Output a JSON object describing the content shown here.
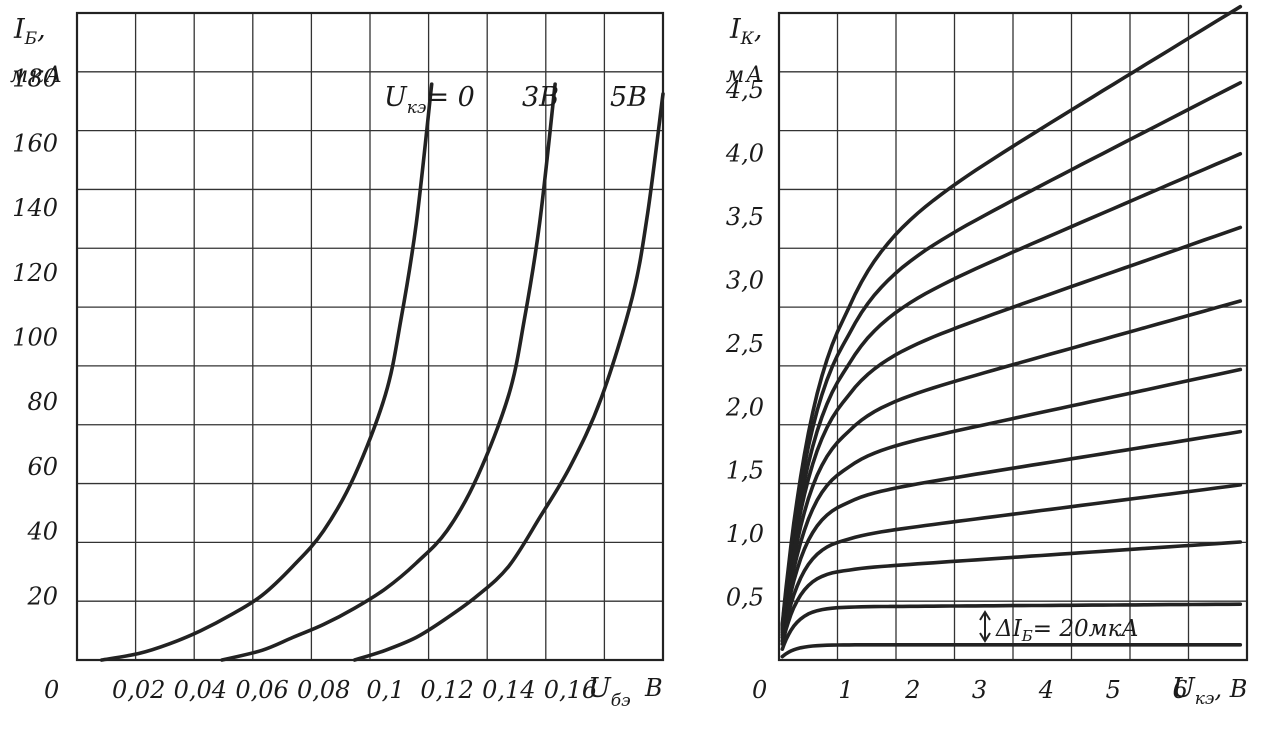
{
  "chart_data": [
    {
      "type": "line",
      "xlabel": "U",
      "xlabel_sub": "бэ",
      "xunit": "В",
      "ylabel": "I",
      "ylabel_sub": "Б",
      "yunit": "мкА",
      "origin_label": "0",
      "xlim": [
        0,
        0.19
      ],
      "ylim": [
        0,
        200
      ],
      "x_ticks": [
        "0,02",
        "0,04",
        "0,06",
        "0,08",
        "0,1",
        "0,12",
        "0,14",
        "0,16"
      ],
      "x_tick_values": [
        0.02,
        0.04,
        0.06,
        0.08,
        0.1,
        0.12,
        0.14,
        0.16
      ],
      "y_ticks": [
        "20",
        "40",
        "60",
        "80",
        "100",
        "120",
        "140",
        "160",
        "180"
      ],
      "y_tick_values": [
        20,
        40,
        60,
        80,
        100,
        120,
        140,
        160,
        180
      ],
      "grid": true,
      "series": [
        {
          "name": "U_кэ = 0",
          "label_main": "U",
          "label_sub": "кэ",
          "label_tail": "= 0",
          "x": [
            0.008,
            0.02,
            0.03,
            0.04,
            0.05,
            0.06,
            0.07,
            0.08,
            0.09,
            0.1,
            0.105,
            0.11,
            0.115
          ],
          "y": [
            0,
            2,
            5,
            9,
            14,
            20,
            29,
            40,
            57,
            82,
            105,
            135,
            178
          ]
        },
        {
          "name": "3В",
          "label_main": "3В",
          "x": [
            0.047,
            0.06,
            0.07,
            0.08,
            0.09,
            0.1,
            0.11,
            0.12,
            0.13,
            0.14,
            0.145,
            0.15,
            0.155
          ],
          "y": [
            0,
            3,
            7,
            11,
            16,
            22,
            30,
            40,
            57,
            82,
            105,
            135,
            178
          ]
        },
        {
          "name": "5В",
          "label_main": "5В",
          "x": [
            0.09,
            0.1,
            0.11,
            0.12,
            0.13,
            0.14,
            0.15,
            0.16,
            0.17,
            0.18,
            0.185,
            0.19
          ],
          "y": [
            0,
            3,
            7,
            13,
            20,
            29,
            44,
            60,
            81,
            112,
            138,
            175
          ]
        }
      ]
    },
    {
      "type": "line",
      "xlabel": "U",
      "xlabel_sub": "кэ",
      "xunit": ", В",
      "ylabel": "I",
      "ylabel_sub": "К",
      "yunit": "мА",
      "origin_label": "0",
      "xlim": [
        0,
        7
      ],
      "ylim": [
        0,
        5.1
      ],
      "x_ticks": [
        "1",
        "2",
        "3",
        "4",
        "5",
        "6"
      ],
      "x_tick_values": [
        1,
        2,
        3,
        4,
        5,
        6
      ],
      "y_ticks": [
        "0,5",
        "1,0",
        "1,5",
        "2,0",
        "2,5",
        "3,0",
        "3,5",
        "4,0",
        "4,5"
      ],
      "y_tick_values": [
        0.5,
        1.0,
        1.5,
        2.0,
        2.5,
        3.0,
        3.5,
        4.0,
        4.5
      ],
      "grid": true,
      "annotation": "ΔI",
      "annotation_sub": "Б",
      "annotation_tail": "= 20мкА",
      "series": [
        {
          "sat": 0.12,
          "end": 0.12,
          "k": 0.2
        },
        {
          "sat": 0.42,
          "end": 0.44,
          "k": 0.22
        },
        {
          "sat": 0.72,
          "end": 0.93,
          "k": 0.26
        },
        {
          "sat": 0.98,
          "end": 1.38,
          "k": 0.3
        },
        {
          "sat": 1.3,
          "end": 1.8,
          "k": 0.34
        },
        {
          "sat": 1.62,
          "end": 2.29,
          "k": 0.38
        },
        {
          "sat": 1.96,
          "end": 2.83,
          "k": 0.42
        },
        {
          "sat": 2.32,
          "end": 3.41,
          "k": 0.46
        },
        {
          "sat": 2.65,
          "end": 3.99,
          "k": 0.5
        },
        {
          "sat": 2.95,
          "end": 4.55,
          "k": 0.52
        },
        {
          "sat": 3.25,
          "end": 5.15,
          "k": 0.55
        }
      ]
    }
  ]
}
